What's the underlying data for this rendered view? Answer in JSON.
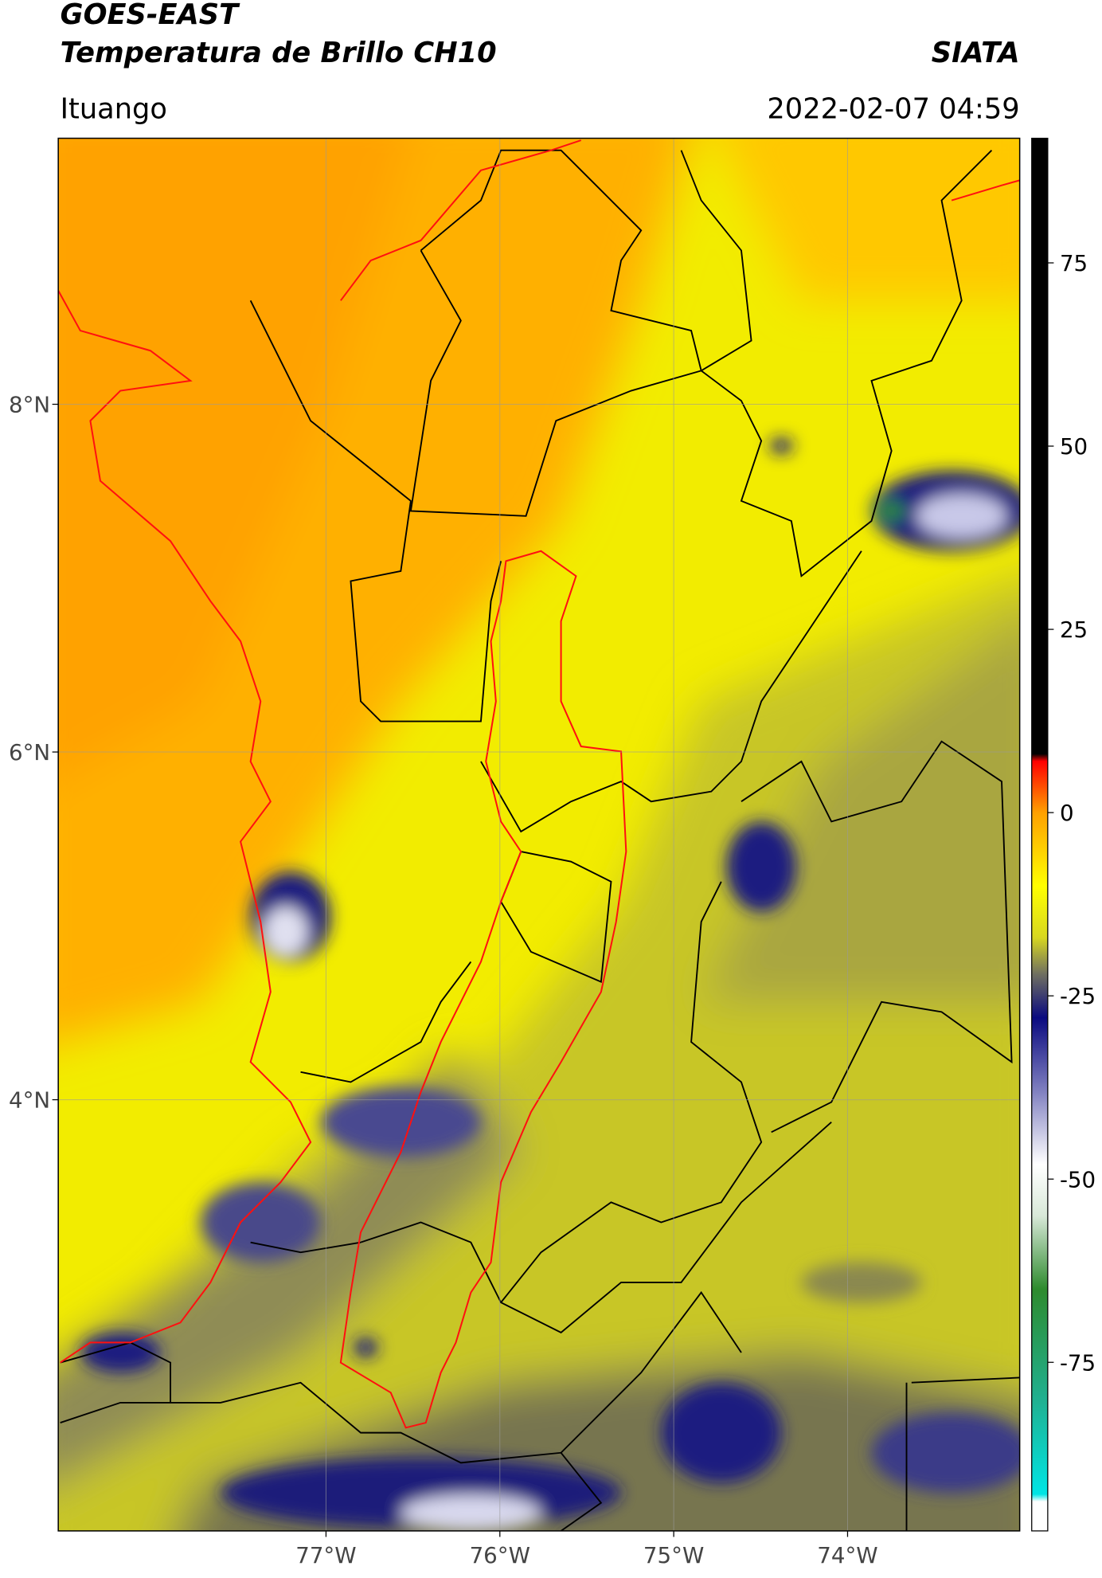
{
  "header": {
    "title": "GOES-EAST",
    "subtitle": "Temperatura de Brillo CH10",
    "source": "SIATA",
    "location": "Ituango",
    "datetime": "2022-02-07 04:59"
  },
  "map": {
    "xlim": [
      -78.54,
      -73.01
    ],
    "ylim": [
      1.52,
      9.53
    ],
    "xticks": [
      {
        "value": -77,
        "label": "77°W"
      },
      {
        "value": -76,
        "label": "76°W"
      },
      {
        "value": -75,
        "label": "75°W"
      },
      {
        "value": -74,
        "label": "74°W"
      }
    ],
    "yticks": [
      {
        "value": 8,
        "label": "8°N"
      },
      {
        "value": 6,
        "label": "6°N"
      },
      {
        "value": 4,
        "label": "4°N"
      }
    ],
    "grid": true
  },
  "colorbar": {
    "lim": [
      -98,
      92
    ],
    "ticks": [
      75,
      50,
      25,
      0,
      -25,
      -50,
      -75
    ],
    "colors": [
      {
        "value": -98,
        "color": "#ffffff"
      },
      {
        "value": -94,
        "color": "#ffffff"
      },
      {
        "value": -93,
        "color": "#00e5e5"
      },
      {
        "value": -80,
        "color": "#20b090"
      },
      {
        "value": -65,
        "color": "#2e8b2e"
      },
      {
        "value": -55,
        "color": "#d8e8d8"
      },
      {
        "value": -48,
        "color": "#ffffff"
      },
      {
        "value": -38,
        "color": "#8080c0"
      },
      {
        "value": -28,
        "color": "#0a0a80"
      },
      {
        "value": -22,
        "color": "#707060"
      },
      {
        "value": -17,
        "color": "#d8d820"
      },
      {
        "value": -10,
        "color": "#ffff00"
      },
      {
        "value": 0,
        "color": "#ffa000"
      },
      {
        "value": 7,
        "color": "#ff0000"
      },
      {
        "value": 8,
        "color": "#000000"
      },
      {
        "value": 92,
        "color": "#000000"
      }
    ]
  }
}
